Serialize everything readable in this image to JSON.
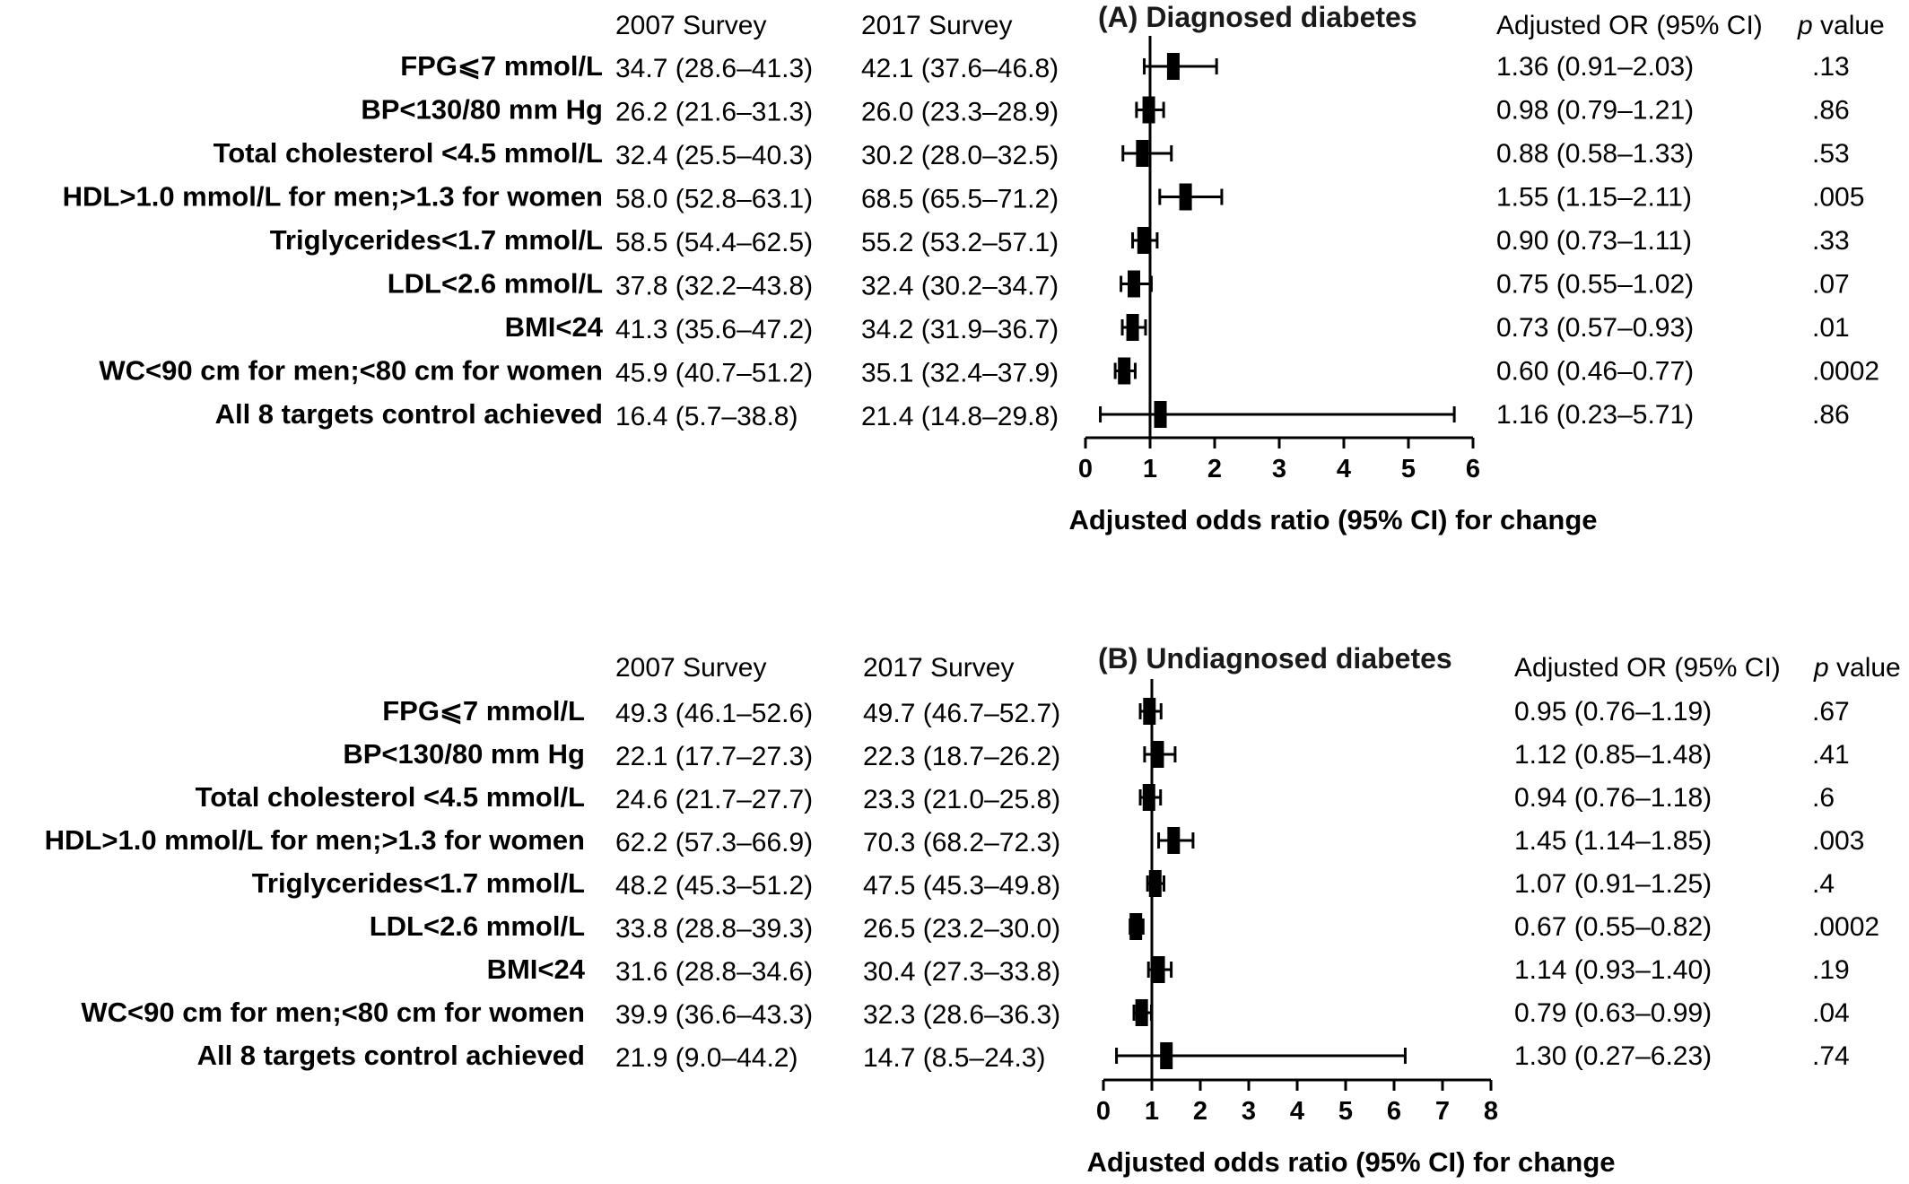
{
  "chart_data": [
    {
      "type": "forest",
      "title": "(A) Diagnosed diabetes",
      "columns": {
        "survey_2007": "2007 Survey",
        "survey_2017": "2017 Survey",
        "adjusted_or": "Adjusted OR (95% CI)",
        "p_italic": "p",
        "p_rest": " value"
      },
      "xlabel": "Adjusted odds ratio (95% CI) for change",
      "xlim": [
        0,
        6
      ],
      "xticks": [
        "0",
        "1",
        "2",
        "3",
        "4",
        "5",
        "6"
      ],
      "reference_line": 1,
      "rows": [
        {
          "label": "FPG⩽7 mmol/L",
          "s2007": "34.7 (28.6–41.3)",
          "s2017": "42.1 (37.6–46.8)",
          "or_text": "1.36 (0.91–2.03)",
          "p": ".13",
          "or": 1.36,
          "lo": 0.91,
          "hi": 2.03
        },
        {
          "label": "BP<130/80 mm Hg",
          "s2007": "26.2 (21.6–31.3)",
          "s2017": "26.0 (23.3–28.9)",
          "or_text": "0.98 (0.79–1.21)",
          "p": ".86",
          "or": 0.98,
          "lo": 0.79,
          "hi": 1.21
        },
        {
          "label": "Total cholesterol <4.5 mmol/L",
          "s2007": "32.4 (25.5–40.3)",
          "s2017": "30.2 (28.0–32.5)",
          "or_text": "0.88 (0.58–1.33)",
          "p": ".53",
          "or": 0.88,
          "lo": 0.58,
          "hi": 1.33
        },
        {
          "label": "HDL>1.0 mmol/L for men;>1.3 for women",
          "s2007": "58.0 (52.8–63.1)",
          "s2017": "68.5 (65.5–71.2)",
          "or_text": "1.55 (1.15–2.11)",
          "p": ".005",
          "or": 1.55,
          "lo": 1.15,
          "hi": 2.11
        },
        {
          "label": "Triglycerides<1.7 mmol/L",
          "s2007": "58.5 (54.4–62.5)",
          "s2017": "55.2 (53.2–57.1)",
          "or_text": "0.90 (0.73–1.11)",
          "p": ".33",
          "or": 0.9,
          "lo": 0.73,
          "hi": 1.11
        },
        {
          "label": "LDL<2.6 mmol/L",
          "s2007": "37.8 (32.2–43.8)",
          "s2017": "32.4 (30.2–34.7)",
          "or_text": "0.75 (0.55–1.02)",
          "p": ".07",
          "or": 0.75,
          "lo": 0.55,
          "hi": 1.02
        },
        {
          "label": "BMI<24",
          "s2007": "41.3 (35.6–47.2)",
          "s2017": "34.2 (31.9–36.7)",
          "or_text": "0.73 (0.57–0.93)",
          "p": ".01",
          "or": 0.73,
          "lo": 0.57,
          "hi": 0.93
        },
        {
          "label": "WC<90 cm for men;<80 cm for women",
          "s2007": "45.9 (40.7–51.2)",
          "s2017": "35.1 (32.4–37.9)",
          "or_text": "0.60 (0.46–0.77)",
          "p": ".0002",
          "or": 0.6,
          "lo": 0.46,
          "hi": 0.77
        },
        {
          "label": "All 8 targets control achieved",
          "s2007": "16.4 (5.7–38.8)",
          "s2017": "21.4 (14.8–29.8)",
          "or_text": "1.16 (0.23–5.71)",
          "p": ".86",
          "or": 1.16,
          "lo": 0.23,
          "hi": 5.71
        }
      ]
    },
    {
      "type": "forest",
      "title": "(B) Undiagnosed diabetes",
      "columns": {
        "survey_2007": "2007 Survey",
        "survey_2017": "2017 Survey",
        "adjusted_or": "Adjusted OR (95% CI)",
        "p_italic": "p",
        "p_rest": " value"
      },
      "xlabel": "Adjusted odds ratio (95% CI) for change",
      "xlim": [
        0,
        8
      ],
      "xticks": [
        "0",
        "1",
        "2",
        "3",
        "4",
        "5",
        "6",
        "7",
        "8"
      ],
      "reference_line": 1,
      "rows": [
        {
          "label": "FPG⩽7 mmol/L",
          "s2007": "49.3 (46.1–52.6)",
          "s2017": "49.7 (46.7–52.7)",
          "or_text": "0.95 (0.76–1.19)",
          "p": ".67",
          "or": 0.95,
          "lo": 0.76,
          "hi": 1.19
        },
        {
          "label": "BP<130/80 mm Hg",
          "s2007": "22.1 (17.7–27.3)",
          "s2017": "22.3 (18.7–26.2)",
          "or_text": "1.12 (0.85–1.48)",
          "p": ".41",
          "or": 1.12,
          "lo": 0.85,
          "hi": 1.48
        },
        {
          "label": "Total cholesterol <4.5 mmol/L",
          "s2007": "24.6 (21.7–27.7)",
          "s2017": "23.3 (21.0–25.8)",
          "or_text": "0.94 (0.76–1.18)",
          "p": ".6",
          "or": 0.94,
          "lo": 0.76,
          "hi": 1.18
        },
        {
          "label": "HDL>1.0 mmol/L for men;>1.3 for women",
          "s2007": "62.2 (57.3–66.9)",
          "s2017": "70.3 (68.2–72.3)",
          "or_text": "1.45 (1.14–1.85)",
          "p": ".003",
          "or": 1.45,
          "lo": 1.14,
          "hi": 1.85
        },
        {
          "label": "Triglycerides<1.7 mmol/L",
          "s2007": "48.2 (45.3–51.2)",
          "s2017": "47.5 (45.3–49.8)",
          "or_text": "1.07 (0.91–1.25)",
          "p": ".4",
          "or": 1.07,
          "lo": 0.91,
          "hi": 1.25
        },
        {
          "label": "LDL<2.6 mmol/L",
          "s2007": "33.8 (28.8–39.3)",
          "s2017": "26.5 (23.2–30.0)",
          "or_text": "0.67 (0.55–0.82)",
          "p": ".0002",
          "or": 0.67,
          "lo": 0.55,
          "hi": 0.82
        },
        {
          "label": "BMI<24",
          "s2007": "31.6 (28.8–34.6)",
          "s2017": "30.4 (27.3–33.8)",
          "or_text": "1.14 (0.93–1.40)",
          "p": ".19",
          "or": 1.14,
          "lo": 0.93,
          "hi": 1.4
        },
        {
          "label": "WC<90 cm for men;<80 cm for women",
          "s2007": "39.9 (36.6–43.3)",
          "s2017": "32.3 (28.6–36.3)",
          "or_text": "0.79 (0.63–0.99)",
          "p": ".04",
          "or": 0.79,
          "lo": 0.63,
          "hi": 0.99
        },
        {
          "label": "All 8 targets control achieved",
          "s2007": "21.9 (9.0–44.2)",
          "s2017": "14.7 (8.5–24.3)",
          "or_text": "1.30 (0.27–6.23)",
          "p": ".74",
          "or": 1.3,
          "lo": 0.27,
          "hi": 6.23
        }
      ]
    }
  ]
}
